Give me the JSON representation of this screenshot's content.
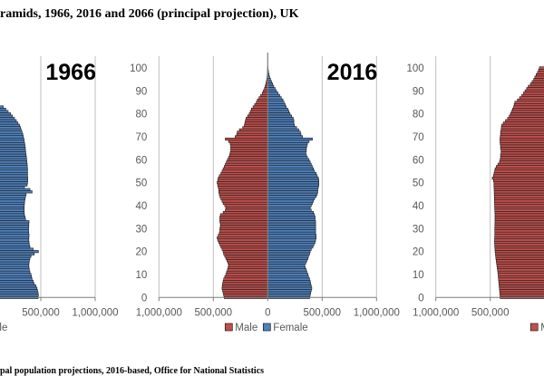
{
  "title": "ramids, 1966, 2016 and 2066 (principal projection), UK",
  "source": "pal population projections, 2016-based, Office for National Statistics",
  "colors": {
    "male": "#C0504D",
    "female": "#4F81BD",
    "bar_outline": "#1a1a1a",
    "gridline": "#BFBFBF",
    "axis": "#7F7F7F"
  },
  "chart_data": [
    {
      "type": "bar",
      "orientation": "horizontal population pyramid",
      "year_label": "1966",
      "x_ticks": [
        "500,000",
        "1,000,000"
      ],
      "xlim": [
        -1000000,
        1000000
      ],
      "ylim": [
        0,
        105
      ],
      "y_ticks": [],
      "grid": true,
      "legend": [
        "Female"
      ],
      "legend_placement": "bottom",
      "series": [
        {
          "name": "Female",
          "start_age": 0,
          "values": [
            475000,
            478000,
            475000,
            470000,
            465000,
            455000,
            440000,
            430000,
            420000,
            415000,
            410000,
            400000,
            395000,
            392000,
            390000,
            392000,
            395000,
            400000,
            410000,
            440000,
            478000,
            430000,
            400000,
            395000,
            392000,
            390000,
            390000,
            392000,
            390000,
            388000,
            388000,
            390000,
            390000,
            392000,
            360000,
            355000,
            350000,
            348000,
            347000,
            347000,
            348000,
            350000,
            352000,
            355000,
            360000,
            365000,
            420000,
            400000,
            350000,
            375000,
            378000,
            380000,
            380000,
            378000,
            378000,
            378000,
            378000,
            376000,
            375000,
            372000,
            370000,
            368000,
            365000,
            362000,
            360000,
            358000,
            355000,
            352000,
            348000,
            345000,
            340000,
            335000,
            328000,
            320000,
            313000,
            305000,
            290000,
            275000,
            258000,
            240000,
            222000,
            200000,
            178000,
            155000
          ]
        }
      ]
    },
    {
      "type": "bar",
      "orientation": "horizontal population pyramid",
      "year_label": "2016",
      "x_ticks": [
        "1,000,000",
        "500,000",
        "0",
        "500,000",
        "1,000,000"
      ],
      "xlim": [
        -1000000,
        1000000
      ],
      "ylim": [
        0,
        105
      ],
      "y_ticks": [
        "0",
        "10",
        "20",
        "30",
        "40",
        "50",
        "60",
        "70",
        "80",
        "90",
        "100"
      ],
      "grid": true,
      "legend": [
        "Male",
        "Female"
      ],
      "legend_placement": "bottom",
      "series": [
        {
          "name": "Male",
          "start_age": 0,
          "values": [
            400000,
            405000,
            410000,
            415000,
            420000,
            418000,
            415000,
            410000,
            405000,
            395000,
            385000,
            378000,
            370000,
            365000,
            360000,
            365000,
            375000,
            385000,
            395000,
            405000,
            410000,
            420000,
            430000,
            440000,
            450000,
            460000,
            465000,
            455000,
            445000,
            440000,
            440000,
            435000,
            435000,
            440000,
            440000,
            440000,
            435000,
            410000,
            390000,
            385000,
            395000,
            410000,
            420000,
            430000,
            440000,
            445000,
            450000,
            450000,
            455000,
            460000,
            465000,
            460000,
            455000,
            445000,
            430000,
            420000,
            410000,
            400000,
            390000,
            380000,
            370000,
            360000,
            350000,
            345000,
            340000,
            340000,
            340000,
            345000,
            360000,
            390000,
            300000,
            285000,
            280000,
            260000,
            230000,
            215000,
            210000,
            205000,
            200000,
            185000,
            170000,
            160000,
            150000,
            135000,
            120000,
            105000,
            95000,
            80000,
            65000,
            50000,
            40000,
            30000,
            24000,
            18000,
            13000,
            9000,
            6000,
            4000,
            3000,
            2000,
            1000
          ]
        },
        {
          "name": "Female",
          "start_age": 0,
          "values": [
            385000,
            390000,
            395000,
            400000,
            405000,
            400000,
            395000,
            390000,
            385000,
            375000,
            370000,
            360000,
            355000,
            345000,
            340000,
            350000,
            360000,
            370000,
            375000,
            385000,
            390000,
            400000,
            415000,
            425000,
            435000,
            440000,
            445000,
            445000,
            440000,
            440000,
            440000,
            440000,
            440000,
            440000,
            435000,
            435000,
            430000,
            420000,
            400000,
            390000,
            400000,
            410000,
            420000,
            430000,
            445000,
            455000,
            460000,
            460000,
            465000,
            470000,
            470000,
            470000,
            465000,
            455000,
            445000,
            430000,
            420000,
            410000,
            400000,
            390000,
            380000,
            365000,
            355000,
            350000,
            355000,
            355000,
            360000,
            365000,
            380000,
            410000,
            320000,
            305000,
            300000,
            285000,
            265000,
            245000,
            240000,
            240000,
            235000,
            220000,
            205000,
            195000,
            185000,
            170000,
            160000,
            150000,
            140000,
            125000,
            110000,
            95000,
            80000,
            68000,
            55000,
            45000,
            35000,
            25000,
            18000,
            12000,
            8000,
            5000,
            3000
          ]
        }
      ]
    },
    {
      "type": "bar",
      "orientation": "horizontal population pyramid",
      "year_label": "",
      "x_ticks": [
        "1,000,000",
        "500,000"
      ],
      "xlim": [
        -1000000,
        1000000
      ],
      "ylim": [
        0,
        105
      ],
      "y_ticks": [
        "0",
        "10",
        "20",
        "30",
        "40",
        "50",
        "60",
        "70",
        "80",
        "90",
        "100"
      ],
      "grid": true,
      "legend": [
        "Mal"
      ],
      "legend_placement": "bottom",
      "series": [
        {
          "name": "Male",
          "start_age": 0,
          "values": [
            409000,
            410000,
            412000,
            414000,
            416000,
            418000,
            420000,
            422000,
            424000,
            426000,
            427000,
            430000,
            433000,
            436000,
            439000,
            442000,
            445000,
            448000,
            450000,
            452000,
            455000,
            456000,
            458000,
            459000,
            460000,
            460000,
            459000,
            458000,
            458000,
            458000,
            458000,
            457000,
            457000,
            456000,
            456000,
            456000,
            456000,
            457000,
            458000,
            459000,
            460000,
            460000,
            461000,
            462000,
            462000,
            463000,
            463000,
            464000,
            465000,
            466000,
            466000,
            470000,
            481000,
            470000,
            465000,
            460000,
            455000,
            445000,
            430000,
            415000,
            409000,
            405000,
            405000,
            400000,
            400000,
            405000,
            405000,
            408000,
            410000,
            410000,
            408000,
            405000,
            405000,
            400000,
            398000,
            395000,
            380000,
            360000,
            340000,
            325000,
            314000,
            305000,
            295000,
            285000,
            280000,
            274000,
            250000,
            230000,
            210000,
            195000,
            180000,
            165000,
            150000,
            130000,
            115000,
            100000,
            90000,
            78000,
            66000,
            56000,
            48000
          ]
        }
      ]
    }
  ]
}
